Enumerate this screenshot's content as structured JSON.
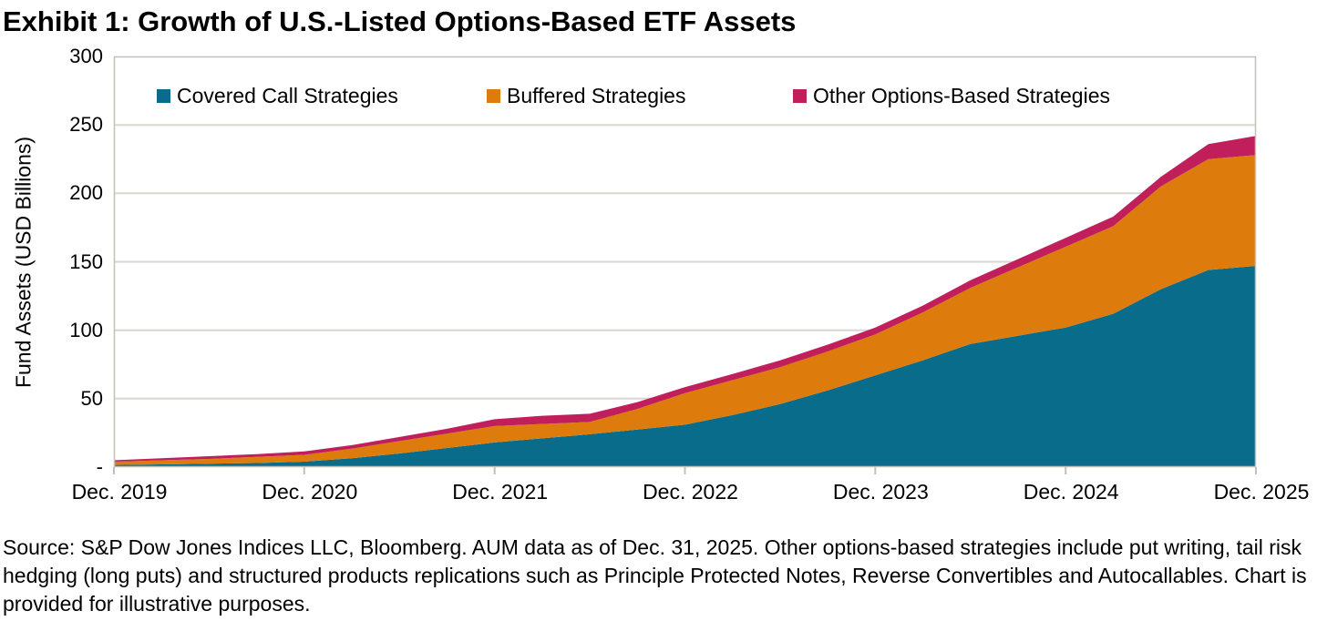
{
  "title": "Exhibit 1: Growth of U.S.-Listed Options-Based ETF Assets",
  "y_axis": {
    "title": "Fund Assets (USD Billions)",
    "tick_labels": [
      "300",
      "250",
      "200",
      "150",
      "100",
      "50",
      "-"
    ],
    "tick_values": [
      300,
      250,
      200,
      150,
      100,
      50,
      0
    ]
  },
  "x_axis": {
    "tick_labels": [
      "Dec. 2019",
      "Dec. 2020",
      "Dec. 2021",
      "Dec. 2022",
      "Dec. 2023",
      "Dec. 2024",
      "Dec. 2025"
    ]
  },
  "legend": [
    {
      "label": "Covered Call Strategies",
      "color": "#0A6C8B"
    },
    {
      "label": "Buffered Strategies",
      "color": "#DD7B0C"
    },
    {
      "label": "Other Options-Based Strategies",
      "color": "#C01F5B"
    }
  ],
  "source_note": "Source: S&P Dow Jones Indices LLC, Bloomberg. AUM data as of Dec. 31, 2025. Other options-based strategies include put writing, tail risk hedging (long puts) and structured products replications such as Principle Protected Notes, Reverse Convertibles and Autocallables. Chart is provided for illustrative purposes.",
  "chart_data": {
    "type": "area",
    "stacked": true,
    "title": "Exhibit 1: Growth of U.S.-Listed Options-Based ETF Assets",
    "ylabel": "Fund Assets (USD Billions)",
    "xlabel": "",
    "ylim": [
      0,
      300
    ],
    "grid": true,
    "legend_position": "top-inside",
    "units": "USD Billions",
    "x": [
      "Dec 2019",
      "Mar 2020",
      "Jun 2020",
      "Sep 2020",
      "Dec 2020",
      "Mar 2021",
      "Jun 2021",
      "Sep 2021",
      "Dec 2021",
      "Mar 2022",
      "Jun 2022",
      "Sep 2022",
      "Dec 2022",
      "Mar 2023",
      "Jun 2023",
      "Sep 2023",
      "Dec 2023",
      "Mar 2024",
      "Jun 2024",
      "Sep 2024",
      "Dec 2024",
      "Mar 2025",
      "Jun 2025",
      "Sep 2025",
      "Dec 2025"
    ],
    "series": [
      {
        "name": "Covered Call Strategies",
        "color": "#0A6C8B",
        "values": [
          1.5,
          2,
          2.5,
          3,
          4,
          6.5,
          10,
          14,
          18,
          21,
          24,
          27.5,
          31,
          38,
          46,
          56,
          67,
          78,
          90,
          96,
          102,
          112,
          130,
          144,
          147
        ]
      },
      {
        "name": "Buffered Strategies",
        "color": "#DD7B0C",
        "values": [
          2.5,
          3,
          3.5,
          4.5,
          5,
          7,
          9,
          10.5,
          12,
          10.5,
          9,
          15,
          23,
          25.5,
          27,
          28.5,
          30,
          35,
          41,
          50,
          59,
          64,
          75,
          81,
          81
        ]
      },
      {
        "name": "Other Options-Based Strategies",
        "color": "#C01F5B",
        "values": [
          1,
          1.5,
          2,
          2,
          2.5,
          2.5,
          3,
          3.5,
          5,
          6,
          6,
          5,
          4.5,
          4.5,
          5,
          5,
          5,
          5,
          5.5,
          6,
          6.5,
          7,
          7,
          11,
          14
        ]
      }
    ],
    "grid_color": "#DAD6CF",
    "border_color": "#C4C0B8"
  }
}
